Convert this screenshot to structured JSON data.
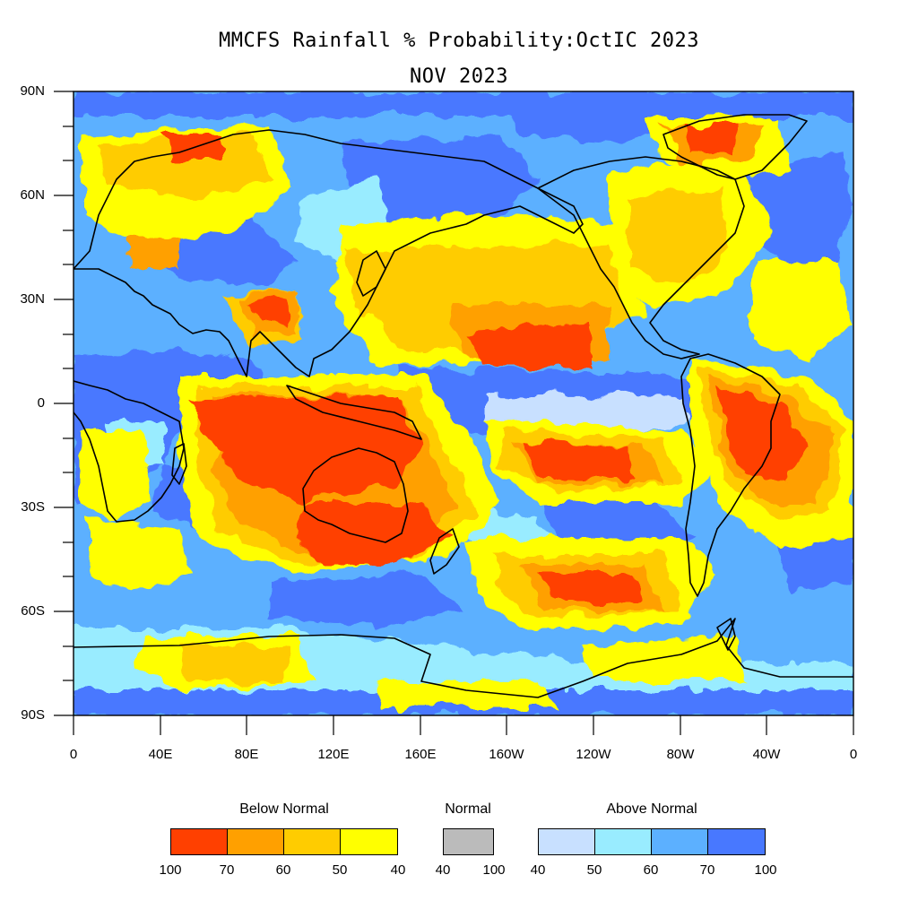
{
  "title": "MMCFS Rainfall % Probability:OctIC 2023",
  "subtitle": "NOV 2023",
  "axes": {
    "y_ticks": [
      "90N",
      "60N",
      "30N",
      "0",
      "30S",
      "60S",
      "90S"
    ],
    "x_ticks": [
      "0",
      "40E",
      "80E",
      "120E",
      "160E",
      "160W",
      "120W",
      "80W",
      "40W",
      "0"
    ]
  },
  "colors": {
    "below_100_70": "#ff4000",
    "below_70_60": "#ffa000",
    "below_60_50": "#ffcc00",
    "below_50_40": "#ffff00",
    "normal": "#bbbbbb",
    "above_40_50": "#c8e0ff",
    "above_50_60": "#99ecff",
    "above_60_70": "#5cb0ff",
    "above_70_100": "#4878ff",
    "coastline": "#000000"
  },
  "legend": {
    "below": {
      "label": "Below Normal",
      "ticks": [
        "100",
        "70",
        "60",
        "50",
        "40"
      ]
    },
    "normal": {
      "label": "Normal",
      "ticks": [
        "40",
        "100"
      ]
    },
    "above": {
      "label": "Above Normal",
      "ticks": [
        "40",
        "50",
        "60",
        "70",
        "100"
      ]
    }
  }
}
